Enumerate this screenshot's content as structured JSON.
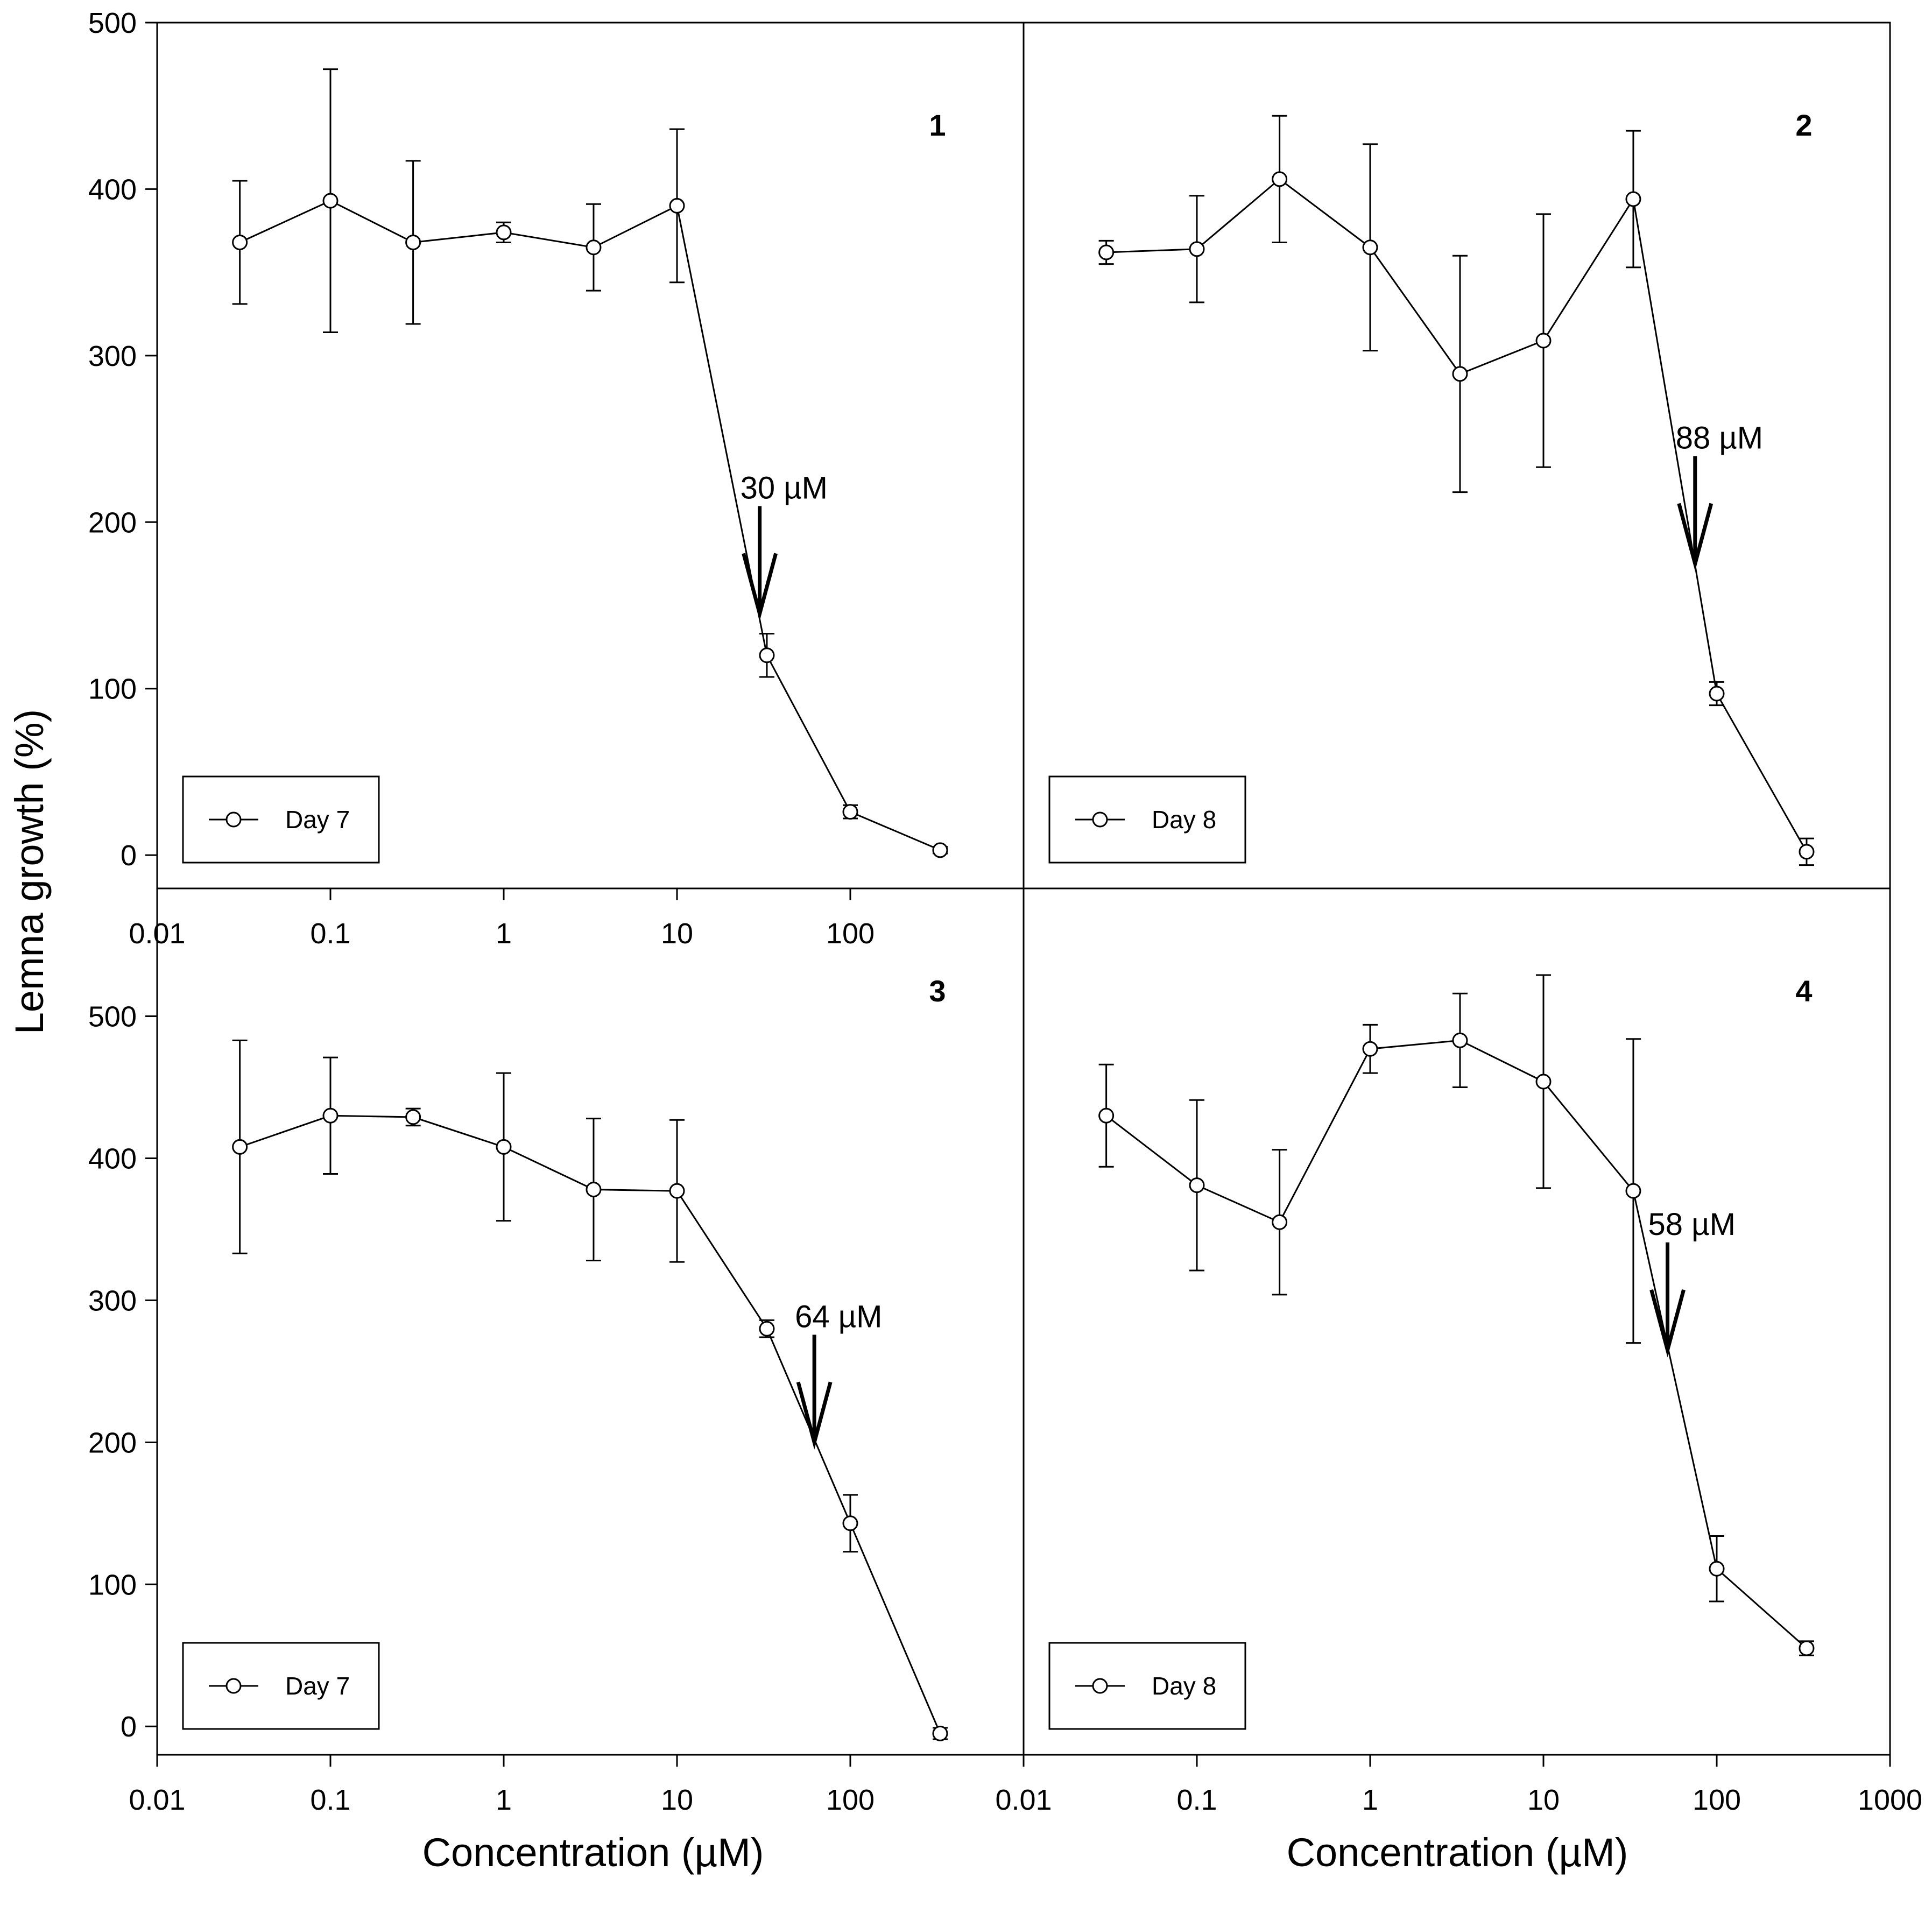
{
  "figure": {
    "ylabel": "Lemna growth (%)",
    "xlabel_left": "Concentration (µM)",
    "xlabel_right": "Concentration (µM)",
    "colors": {
      "line": "#000000",
      "marker_fill": "#ffffff",
      "background": "#ffffff"
    }
  },
  "chart_data": [
    {
      "type": "line",
      "panel": "1",
      "xscale": "log",
      "xlim": [
        0.01,
        1000
      ],
      "ylim": [
        -20,
        500
      ],
      "yticks": [
        0,
        100,
        200,
        300,
        400,
        500
      ],
      "xticks": [
        "0.01",
        "0.1",
        "1",
        "10",
        "100"
      ],
      "legend": "Day 7",
      "legend_position": "bottom-left",
      "x": [
        0.03,
        0.1,
        0.3,
        1,
        3.3,
        10,
        33,
        100,
        330
      ],
      "y": [
        368,
        393,
        368,
        374,
        365,
        390,
        120,
        26,
        3
      ],
      "yerr": [
        37,
        79,
        49,
        6,
        26,
        46,
        13,
        4,
        2
      ],
      "annotation": {
        "text": "30 µM",
        "x": 30,
        "y": 145
      }
    },
    {
      "type": "line",
      "panel": "2",
      "xscale": "log",
      "xlim": [
        0.01,
        1000
      ],
      "ylim": [
        -20,
        500
      ],
      "yticks": [],
      "xticks": [],
      "legend": "Day 8",
      "legend_position": "bottom-left",
      "x": [
        0.03,
        0.1,
        0.3,
        1,
        3.3,
        10,
        33,
        100,
        330
      ],
      "y": [
        362,
        364,
        406,
        365,
        289,
        309,
        394,
        97,
        2
      ],
      "yerr": [
        7,
        32,
        38,
        62,
        71,
        76,
        41,
        7,
        8
      ],
      "annotation": {
        "text": "88 µM",
        "x": 75,
        "y": 175
      }
    },
    {
      "type": "line",
      "panel": "3",
      "xscale": "log",
      "xlim": [
        0.01,
        1000
      ],
      "ylim": [
        -20,
        590
      ],
      "yticks": [
        0,
        100,
        200,
        300,
        400,
        500
      ],
      "xticks": [
        "0.01",
        "0.1",
        "1",
        "10",
        "100"
      ],
      "legend": "Day 7",
      "legend_position": "bottom-left",
      "x": [
        0.03,
        0.1,
        0.3,
        1,
        3.3,
        10,
        33,
        100,
        330
      ],
      "y": [
        408,
        430,
        429,
        408,
        378,
        377,
        280,
        143,
        -5
      ],
      "yerr": [
        75,
        41,
        6,
        52,
        50,
        50,
        6,
        20,
        4
      ],
      "annotation": {
        "text": "64 µM",
        "x": 62,
        "y": 200
      }
    },
    {
      "type": "line",
      "panel": "4",
      "xscale": "log",
      "xlim": [
        0.01,
        1000
      ],
      "ylim": [
        -20,
        590
      ],
      "yticks": [],
      "xticks": [
        "0.01",
        "0.1",
        "1",
        "10",
        "100",
        "1000"
      ],
      "legend": "Day 8",
      "legend_position": "bottom-left",
      "x": [
        0.03,
        0.1,
        0.3,
        1,
        3.3,
        10,
        33,
        100,
        330
      ],
      "y": [
        430,
        381,
        355,
        477,
        483,
        454,
        377,
        111,
        55
      ],
      "yerr": [
        36,
        60,
        51,
        17,
        33,
        75,
        107,
        23,
        5
      ],
      "annotation": {
        "text": "58 µM",
        "x": 52,
        "y": 265
      }
    }
  ]
}
